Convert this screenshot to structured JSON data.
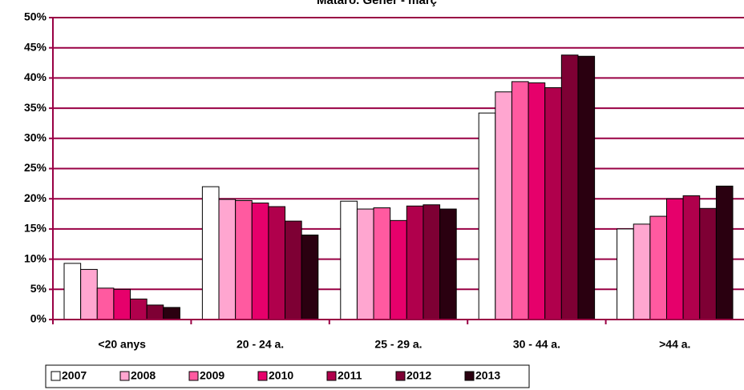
{
  "chart_data": {
    "type": "bar",
    "title": "Mataró. Gener - març",
    "categories": [
      "<20 anys",
      "20 - 24 a.",
      "25 - 29 a.",
      "30 - 44 a.",
      ">44 a."
    ],
    "series": [
      {
        "name": "2007",
        "color": "#ffffff",
        "values": [
          9.3,
          22.0,
          19.6,
          34.2,
          15.0
        ]
      },
      {
        "name": "2008",
        "color": "#ffa6d0",
        "values": [
          8.3,
          19.9,
          18.3,
          37.7,
          15.8
        ]
      },
      {
        "name": "2009",
        "color": "#ff5aa0",
        "values": [
          5.2,
          19.7,
          18.5,
          39.4,
          17.1
        ]
      },
      {
        "name": "2010",
        "color": "#e6006b",
        "values": [
          5.0,
          19.3,
          16.4,
          39.2,
          20.0
        ]
      },
      {
        "name": "2011",
        "color": "#b0004c",
        "values": [
          3.4,
          18.7,
          18.8,
          38.4,
          20.5
        ]
      },
      {
        "name": "2012",
        "color": "#7e0034",
        "values": [
          2.4,
          16.3,
          19.0,
          43.8,
          18.4
        ]
      },
      {
        "name": "2013",
        "color": "#2a0010",
        "values": [
          2.0,
          14.0,
          18.3,
          43.6,
          22.1
        ]
      }
    ],
    "ylim": [
      0,
      50
    ],
    "yticks": [
      {
        "value": 0,
        "label": "0%"
      },
      {
        "value": 5,
        "label": "5%"
      },
      {
        "value": 10,
        "label": "10%"
      },
      {
        "value": 15,
        "label": "15%"
      },
      {
        "value": 20,
        "label": "20%"
      },
      {
        "value": 25,
        "label": "25%"
      },
      {
        "value": 30,
        "label": "30%"
      },
      {
        "value": 35,
        "label": "35%"
      },
      {
        "value": 40,
        "label": "40%"
      },
      {
        "value": 45,
        "label": "45%"
      },
      {
        "value": 50,
        "label": "50%"
      }
    ],
    "grid": true,
    "grid_color": "#990044",
    "legend": "bottom"
  }
}
